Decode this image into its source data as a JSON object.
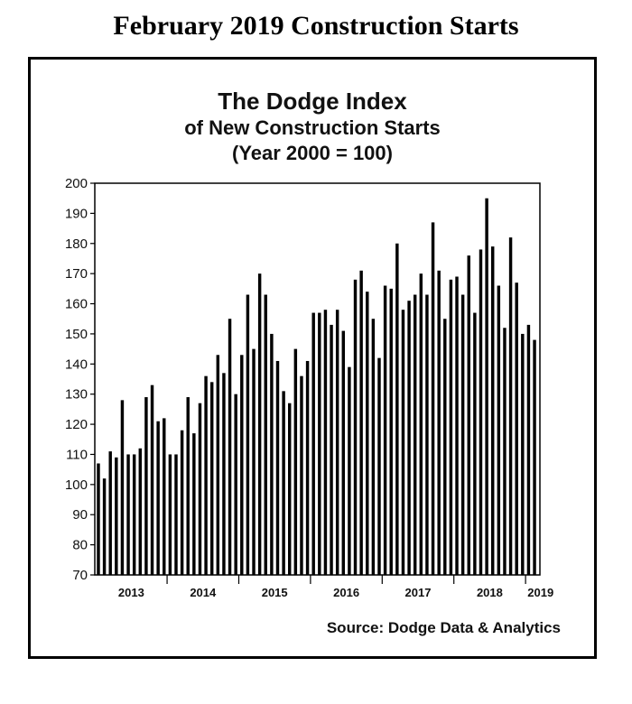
{
  "page_title": "February 2019 Construction Starts",
  "chart_data": {
    "type": "bar",
    "title": "The Dodge Index",
    "subtitle": "of New Construction Starts",
    "subtitle2": "(Year 2000 = 100)",
    "source": "Source:  Dodge Data & Analytics",
    "xlabel": "",
    "ylabel": "",
    "ylim": [
      70,
      200
    ],
    "yticks": [
      70,
      80,
      90,
      100,
      110,
      120,
      130,
      140,
      150,
      160,
      170,
      180,
      190,
      200
    ],
    "grid": false,
    "color": "#000000",
    "year_labels": [
      "2013",
      "2014",
      "2015",
      "2016",
      "2017",
      "2018",
      "2019"
    ],
    "values": [
      107,
      102,
      111,
      109,
      128,
      110,
      110,
      112,
      129,
      133,
      121,
      122,
      110,
      110,
      118,
      129,
      117,
      127,
      136,
      134,
      143,
      137,
      155,
      130,
      143,
      163,
      145,
      170,
      163,
      150,
      141,
      131,
      127,
      145,
      136,
      141,
      157,
      157,
      158,
      153,
      158,
      151,
      139,
      168,
      171,
      164,
      155,
      142,
      166,
      165,
      180,
      158,
      161,
      163,
      170,
      163,
      187,
      171,
      155,
      168,
      169,
      163,
      176,
      157,
      178,
      195,
      179,
      166,
      152,
      182,
      167,
      150,
      153,
      148
    ]
  }
}
